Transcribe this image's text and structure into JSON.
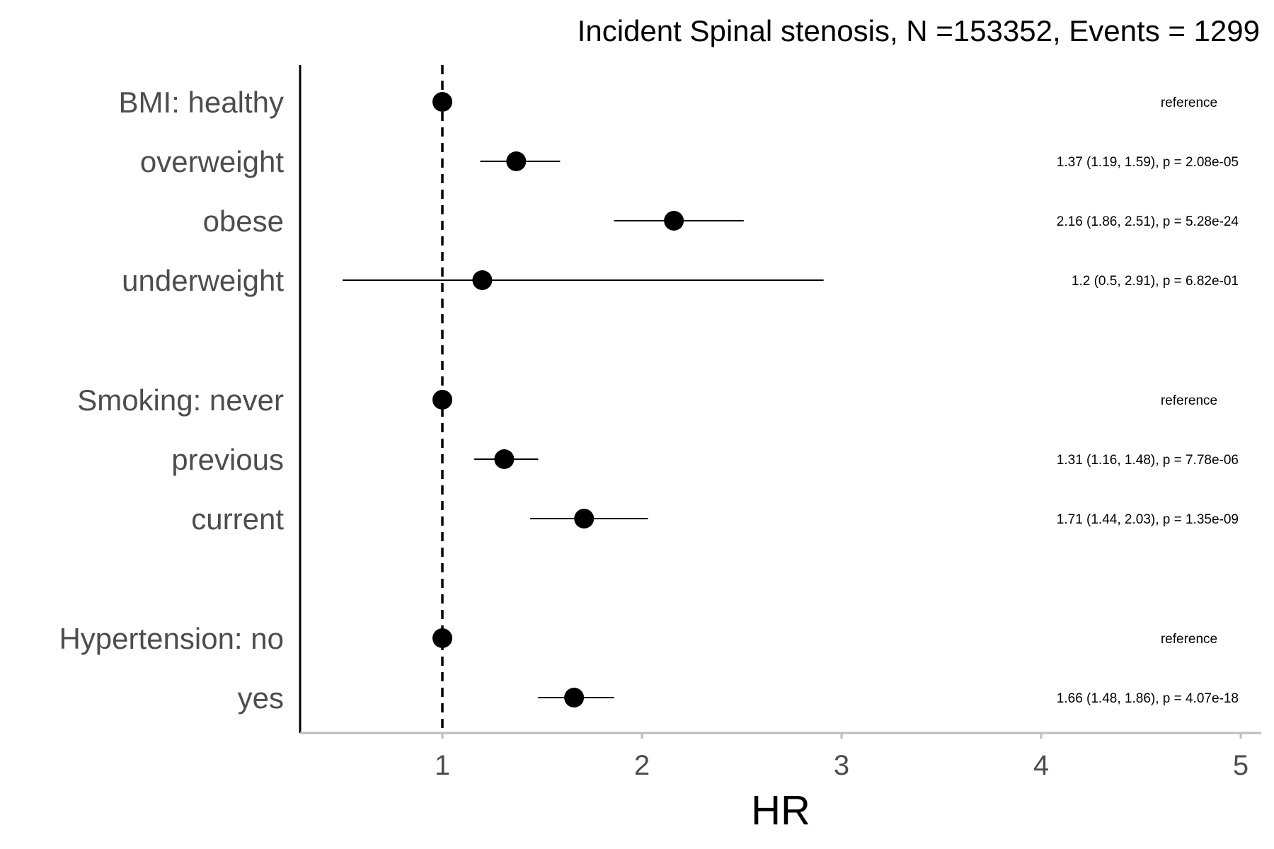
{
  "chart_data": {
    "type": "scatter",
    "subtype": "forest",
    "title": "Incident Spinal stenosis, N =153352, Events = 1299",
    "xlabel": "HR",
    "ylabel": "",
    "xlim": [
      0.3,
      5.1
    ],
    "xticks": [
      1,
      2,
      3,
      4,
      5
    ],
    "reference_line": 1,
    "grid": false,
    "rows": [
      {
        "label": "BMI: healthy",
        "hr": 1.0,
        "lo": null,
        "hi": null,
        "annotation": "reference"
      },
      {
        "label": "overweight",
        "hr": 1.37,
        "lo": 1.19,
        "hi": 1.59,
        "annotation": "1.37 (1.19, 1.59), p = 2.08e-05"
      },
      {
        "label": "obese",
        "hr": 2.16,
        "lo": 1.86,
        "hi": 2.51,
        "annotation": "2.16 (1.86, 2.51), p = 5.28e-24"
      },
      {
        "label": "underweight",
        "hr": 1.2,
        "lo": 0.5,
        "hi": 2.91,
        "annotation": "1.2 (0.5, 2.91), p = 6.82e-01"
      },
      {
        "label": "Smoking: never",
        "hr": 1.0,
        "lo": null,
        "hi": null,
        "annotation": "reference"
      },
      {
        "label": "previous",
        "hr": 1.31,
        "lo": 1.16,
        "hi": 1.48,
        "annotation": "1.31 (1.16, 1.48), p = 7.78e-06"
      },
      {
        "label": "current",
        "hr": 1.71,
        "lo": 1.44,
        "hi": 2.03,
        "annotation": "1.71 (1.44, 2.03), p = 1.35e-09"
      },
      {
        "label": "Hypertension: no",
        "hr": 1.0,
        "lo": null,
        "hi": null,
        "annotation": "reference"
      },
      {
        "label": "yes",
        "hr": 1.66,
        "lo": 1.48,
        "hi": 1.86,
        "annotation": "1.66 (1.48, 1.86), p = 4.07e-18"
      }
    ]
  }
}
